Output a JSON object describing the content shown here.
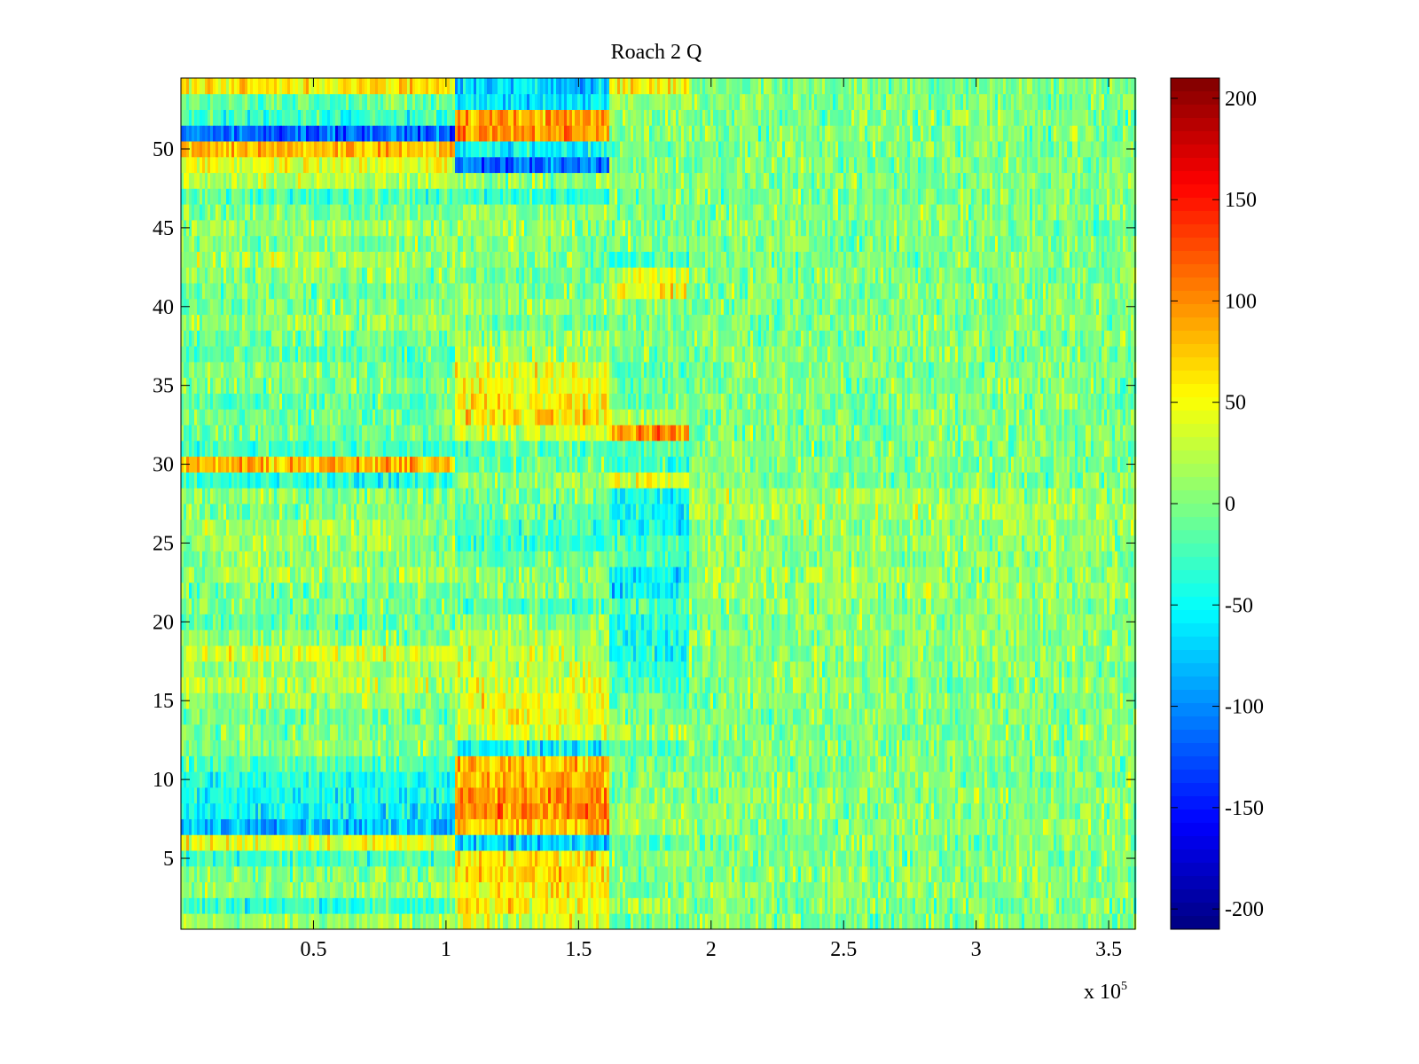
{
  "chart_data": {
    "type": "heatmap",
    "title": "Roach 2 Q",
    "xlabel": "",
    "ylabel": "",
    "x_exponent_label": "x 10",
    "x_exponent_power": "5",
    "xlim": [
      0,
      3.6
    ],
    "ylim": [
      0.5,
      54.5
    ],
    "x_ticks": [
      0.5,
      1,
      1.5,
      2,
      2.5,
      3,
      3.5
    ],
    "x_tick_labels": [
      "0.5",
      "1",
      "1.5",
      "2",
      "2.5",
      "3",
      "3.5"
    ],
    "y_ticks": [
      5,
      10,
      15,
      20,
      25,
      30,
      35,
      40,
      45,
      50
    ],
    "y_tick_labels": [
      "5",
      "10",
      "15",
      "20",
      "25",
      "30",
      "35",
      "40",
      "45",
      "50"
    ],
    "rows": 54,
    "colormap": "jet",
    "clim": [
      -210,
      210
    ],
    "colorbar": {
      "ticks": [
        200,
        150,
        100,
        50,
        0,
        -50,
        -100,
        -150,
        -200
      ],
      "tick_labels": [
        "200",
        "150",
        "100",
        "50",
        "0",
        "-50",
        "-100",
        "-150",
        "-200"
      ]
    },
    "x_segments": [
      0,
      1.03,
      1.62,
      1.92,
      3.6
    ],
    "noise_amplitude": 28,
    "segment_means": [
      [
        10,
        35,
        -8,
        0
      ],
      [
        -30,
        55,
        15,
        0
      ],
      [
        5,
        50,
        -10,
        5
      ],
      [
        0,
        65,
        0,
        5
      ],
      [
        -25,
        60,
        0,
        0
      ],
      [
        45,
        -75,
        -15,
        0
      ],
      [
        -75,
        80,
        15,
        5
      ],
      [
        -55,
        100,
        10,
        5
      ],
      [
        -45,
        95,
        5,
        5
      ],
      [
        -40,
        85,
        5,
        0
      ],
      [
        -20,
        80,
        0,
        0
      ],
      [
        5,
        -50,
        -20,
        0
      ],
      [
        0,
        35,
        15,
        0
      ],
      [
        -5,
        45,
        0,
        0
      ],
      [
        10,
        40,
        -10,
        5
      ],
      [
        25,
        35,
        -25,
        5
      ],
      [
        15,
        30,
        -35,
        0
      ],
      [
        35,
        25,
        -45,
        5
      ],
      [
        5,
        15,
        -40,
        5
      ],
      [
        -10,
        5,
        -45,
        5
      ],
      [
        0,
        -20,
        -25,
        5
      ],
      [
        -5,
        0,
        -55,
        10
      ],
      [
        15,
        5,
        -50,
        10
      ],
      [
        5,
        -10,
        -20,
        5
      ],
      [
        10,
        -30,
        -25,
        10
      ],
      [
        15,
        -25,
        -40,
        10
      ],
      [
        0,
        -15,
        -55,
        15
      ],
      [
        5,
        0,
        -45,
        15
      ],
      [
        -40,
        10,
        40,
        0
      ],
      [
        80,
        -10,
        -30,
        0
      ],
      [
        -25,
        -20,
        -15,
        0
      ],
      [
        -10,
        30,
        95,
        0
      ],
      [
        -5,
        60,
        15,
        0
      ],
      [
        -15,
        55,
        -5,
        0
      ],
      [
        0,
        50,
        -10,
        0
      ],
      [
        0,
        40,
        -10,
        0
      ],
      [
        -20,
        15,
        -5,
        0
      ],
      [
        -5,
        10,
        0,
        0
      ],
      [
        10,
        -5,
        0,
        0
      ],
      [
        0,
        10,
        5,
        0
      ],
      [
        -5,
        0,
        45,
        0
      ],
      [
        5,
        -10,
        40,
        0
      ],
      [
        15,
        5,
        -30,
        0
      ],
      [
        0,
        5,
        -5,
        0
      ],
      [
        15,
        10,
        0,
        0
      ],
      [
        0,
        5,
        0,
        0
      ],
      [
        -20,
        -35,
        -5,
        0
      ],
      [
        20,
        10,
        0,
        0
      ],
      [
        45,
        -110,
        -5,
        0
      ],
      [
        80,
        -50,
        -5,
        0
      ],
      [
        -115,
        95,
        0,
        0
      ],
      [
        -30,
        90,
        5,
        0
      ],
      [
        -10,
        -60,
        15,
        0
      ],
      [
        60,
        -70,
        55,
        0
      ]
    ]
  }
}
